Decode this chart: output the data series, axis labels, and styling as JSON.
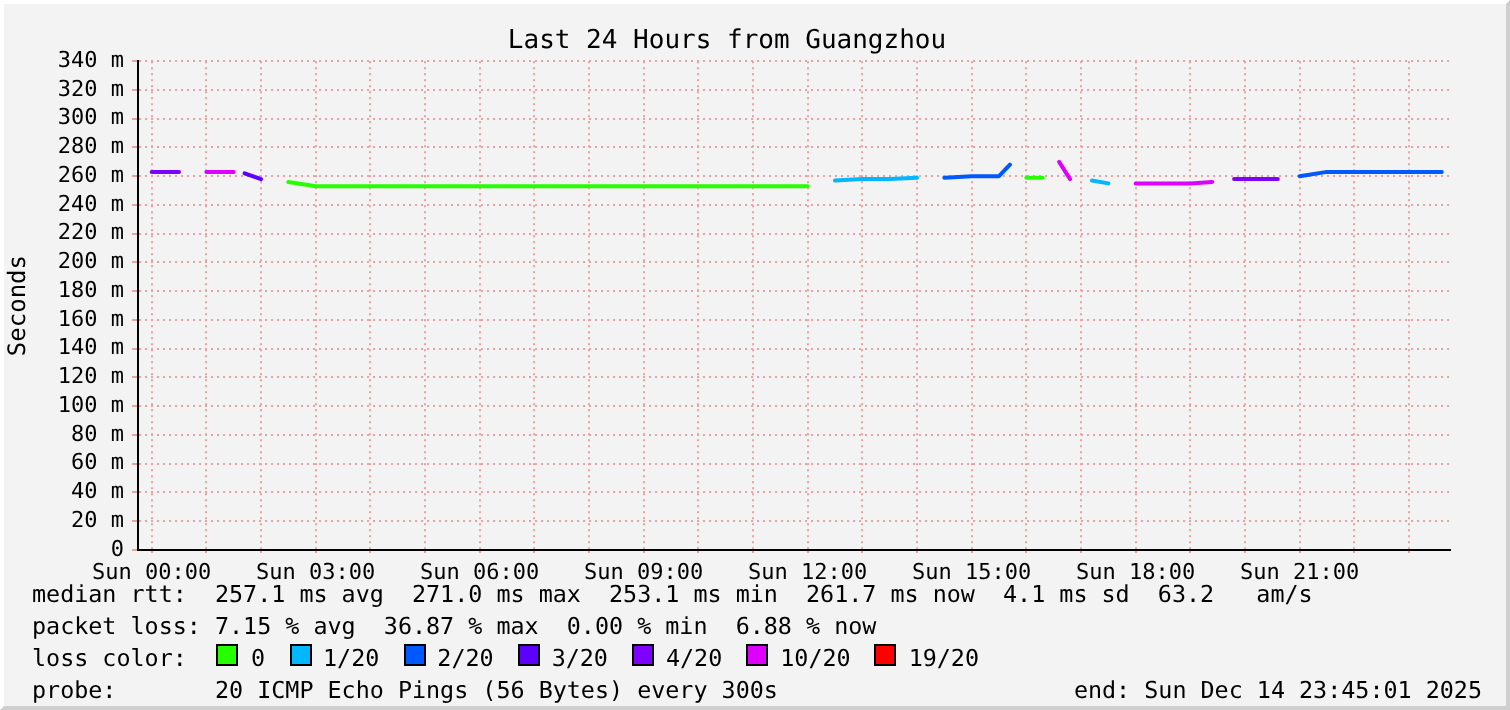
{
  "chart_data": {
    "type": "line",
    "title": "Last 24 Hours from Guangzhou",
    "ylabel": "Seconds",
    "legend_title": "loss color:",
    "legend": "bottom",
    "grid": true,
    "marker": "none",
    "line_style": "solid",
    "x": [
      "2025-12-14T00:00",
      "2025-12-14T00:30",
      "2025-12-14T01:00",
      "2025-12-14T01:30",
      "2025-12-14T01:42",
      "2025-12-14T02:00",
      "2025-12-14T02:30",
      "2025-12-14T03:00",
      "2025-12-14T04:00",
      "2025-12-14T05:00",
      "2025-12-14T06:00",
      "2025-12-14T07:00",
      "2025-12-14T08:00",
      "2025-12-14T09:00",
      "2025-12-14T10:00",
      "2025-12-14T11:00",
      "2025-12-14T12:00",
      "2025-12-14T12:30",
      "2025-12-14T13:00",
      "2025-12-14T13:30",
      "2025-12-14T14:00",
      "2025-12-14T14:30",
      "2025-12-14T15:00",
      "2025-12-14T15:30",
      "2025-12-14T15:42",
      "2025-12-14T16:00",
      "2025-12-14T16:18",
      "2025-12-14T16:36",
      "2025-12-14T16:48",
      "2025-12-14T17:12",
      "2025-12-14T17:30",
      "2025-12-14T18:00",
      "2025-12-14T18:30",
      "2025-12-14T19:00",
      "2025-12-14T19:24",
      "2025-12-14T19:48",
      "2025-12-14T20:12",
      "2025-12-14T20:36",
      "2025-12-14T21:00",
      "2025-12-14T21:30",
      "2025-12-14T22:00",
      "2025-12-14T22:30",
      "2025-12-14T23:00",
      "2025-12-14T23:30",
      "2025-12-14T23:36"
    ],
    "xlim": [
      "2025-12-13T23:45",
      "2025-12-14T23:45"
    ],
    "xticks": [
      {
        "value": "2025-12-14T00:00",
        "label": "Sun 00:00"
      },
      {
        "value": "2025-12-14T01:00",
        "label": null
      },
      {
        "value": "2025-12-14T02:00",
        "label": null
      },
      {
        "value": "2025-12-14T03:00",
        "label": "Sun 03:00"
      },
      {
        "value": "2025-12-14T04:00",
        "label": null
      },
      {
        "value": "2025-12-14T05:00",
        "label": null
      },
      {
        "value": "2025-12-14T06:00",
        "label": "Sun 06:00"
      },
      {
        "value": "2025-12-14T07:00",
        "label": null
      },
      {
        "value": "2025-12-14T08:00",
        "label": null
      },
      {
        "value": "2025-12-14T09:00",
        "label": "Sun 09:00"
      },
      {
        "value": "2025-12-14T10:00",
        "label": null
      },
      {
        "value": "2025-12-14T11:00",
        "label": null
      },
      {
        "value": "2025-12-14T12:00",
        "label": "Sun 12:00"
      },
      {
        "value": "2025-12-14T13:00",
        "label": null
      },
      {
        "value": "2025-12-14T14:00",
        "label": null
      },
      {
        "value": "2025-12-14T15:00",
        "label": "Sun 15:00"
      },
      {
        "value": "2025-12-14T16:00",
        "label": null
      },
      {
        "value": "2025-12-14T17:00",
        "label": null
      },
      {
        "value": "2025-12-14T18:00",
        "label": "Sun 18:00"
      },
      {
        "value": "2025-12-14T19:00",
        "label": null
      },
      {
        "value": "2025-12-14T20:00",
        "label": null
      },
      {
        "value": "2025-12-14T21:00",
        "label": "Sun 21:00"
      },
      {
        "value": "2025-12-14T22:00",
        "label": null
      },
      {
        "value": "2025-12-14T23:00",
        "label": null
      }
    ],
    "ylim": [
      0,
      340
    ],
    "yticks": [
      0,
      {
        "value": 20,
        "label": "20 m"
      },
      {
        "value": 40,
        "label": "40 m"
      },
      {
        "value": 60,
        "label": "60 m"
      },
      {
        "value": 80,
        "label": "80 m"
      },
      {
        "value": 100,
        "label": "100 m"
      },
      {
        "value": 120,
        "label": "120 m"
      },
      {
        "value": 140,
        "label": "140 m"
      },
      {
        "value": 160,
        "label": "160 m"
      },
      {
        "value": 180,
        "label": "180 m"
      },
      {
        "value": 200,
        "label": "200 m"
      },
      {
        "value": 220,
        "label": "220 m"
      },
      {
        "value": 240,
        "label": "240 m"
      },
      {
        "value": 260,
        "label": "260 m"
      },
      {
        "value": 280,
        "label": "280 m"
      },
      {
        "value": 300,
        "label": "300 m"
      },
      {
        "value": 320,
        "label": "320 m"
      },
      {
        "value": 340,
        "label": "340 m"
      }
    ],
    "series": [
      {
        "name": "0",
        "color": "#26ff00",
        "values": [
          null,
          null,
          null,
          null,
          null,
          null,
          256,
          253,
          253,
          253,
          253,
          253,
          253,
          253,
          253,
          253,
          253,
          null,
          null,
          null,
          null,
          null,
          null,
          null,
          null,
          259,
          259,
          null,
          null,
          null,
          null,
          null,
          null,
          null,
          null,
          null,
          null,
          null,
          null,
          null,
          null,
          null,
          null,
          null,
          null
        ]
      },
      {
        "name": "1/20",
        "color": "#00b8ff",
        "values": [
          null,
          null,
          null,
          null,
          null,
          null,
          null,
          null,
          null,
          null,
          null,
          null,
          null,
          null,
          null,
          null,
          null,
          257,
          258,
          258,
          259,
          null,
          null,
          null,
          null,
          null,
          null,
          null,
          null,
          257,
          255,
          null,
          null,
          null,
          null,
          null,
          null,
          null,
          null,
          null,
          null,
          null,
          null,
          null,
          null
        ]
      },
      {
        "name": "2/20",
        "color": "#0059ff",
        "values": [
          null,
          null,
          null,
          null,
          null,
          null,
          null,
          null,
          null,
          null,
          null,
          null,
          null,
          null,
          null,
          null,
          null,
          null,
          null,
          null,
          null,
          259,
          260,
          260,
          268,
          null,
          null,
          null,
          null,
          null,
          null,
          null,
          null,
          null,
          null,
          null,
          null,
          null,
          260,
          263,
          263,
          263,
          263,
          263,
          263
        ]
      },
      {
        "name": "3/20",
        "color": "#5e00ff",
        "values": [
          null,
          null,
          null,
          null,
          262,
          258,
          null,
          null,
          null,
          null,
          null,
          null,
          null,
          null,
          null,
          null,
          null,
          null,
          null,
          null,
          null,
          null,
          null,
          null,
          null,
          null,
          null,
          null,
          null,
          null,
          null,
          null,
          null,
          null,
          null,
          null,
          null,
          null,
          null,
          null,
          null,
          null,
          null,
          null,
          null
        ]
      },
      {
        "name": "4/20",
        "color": "#7e00ff",
        "values": [
          263,
          263,
          null,
          null,
          null,
          null,
          null,
          null,
          null,
          null,
          null,
          null,
          null,
          null,
          null,
          null,
          null,
          null,
          null,
          null,
          null,
          null,
          null,
          null,
          null,
          null,
          null,
          null,
          null,
          null,
          null,
          null,
          null,
          null,
          null,
          258,
          258,
          258,
          null,
          null,
          null,
          null,
          null,
          null,
          null
        ]
      },
      {
        "name": "10/20",
        "color": "#dd00ff",
        "values": [
          null,
          null,
          263,
          263,
          null,
          null,
          null,
          null,
          null,
          null,
          null,
          null,
          null,
          null,
          null,
          null,
          null,
          null,
          null,
          null,
          null,
          null,
          null,
          null,
          null,
          null,
          null,
          270,
          258,
          null,
          null,
          255,
          255,
          255,
          256,
          null,
          null,
          null,
          null,
          null,
          null,
          null,
          null,
          null,
          null
        ]
      },
      {
        "name": "19/20",
        "color": "#ff0000",
        "values": [
          null,
          null,
          null,
          null,
          null,
          null,
          null,
          null,
          null,
          null,
          null,
          null,
          null,
          null,
          null,
          null,
          null,
          null,
          null,
          null,
          null,
          null,
          null,
          null,
          null,
          null,
          null,
          null,
          null,
          null,
          null,
          null,
          null,
          null,
          null,
          null,
          null,
          null,
          null,
          null,
          null,
          null,
          null,
          null,
          null
        ]
      }
    ],
    "annotations": [
      "median rtt:  257.1 ms avg  271.0 ms max  253.1 ms min  261.7 ms now  4.1 ms sd  63.2   am/s",
      "packet loss: 7.15 % avg  36.87 % max  0.00 % min  6.88 % now",
      "probe:       20 ICMP Echo Pings (56 Bytes) every 300s",
      "end: Sun Dec 14 23:45:01 2025"
    ]
  }
}
